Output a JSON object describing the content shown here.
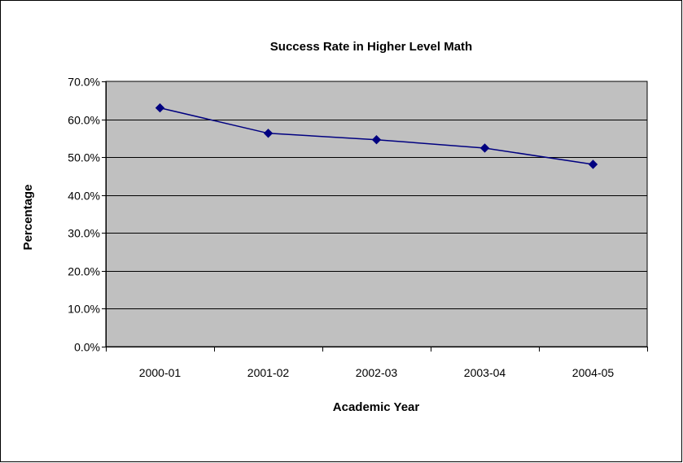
{
  "chart_data": {
    "type": "line",
    "title": "Success Rate in Higher Level Math",
    "xlabel": "Academic Year",
    "ylabel": "Percentage",
    "categories": [
      "2000-01",
      "2001-02",
      "2002-03",
      "2003-04",
      "2004-05"
    ],
    "series": [
      {
        "values": [
          63.0,
          56.3,
          54.6,
          52.4,
          48.1
        ]
      }
    ],
    "ylim": [
      0,
      70
    ],
    "yticks": [
      "0.0%",
      "10.0%",
      "20.0%",
      "30.0%",
      "40.0%",
      "50.0%",
      "60.0%",
      "70.0%"
    ],
    "grid": true,
    "legend": "none",
    "colors": {
      "plot_background": "#C0C0C0",
      "line": "#000080",
      "gridline": "#000000",
      "frame": "#000000"
    }
  }
}
